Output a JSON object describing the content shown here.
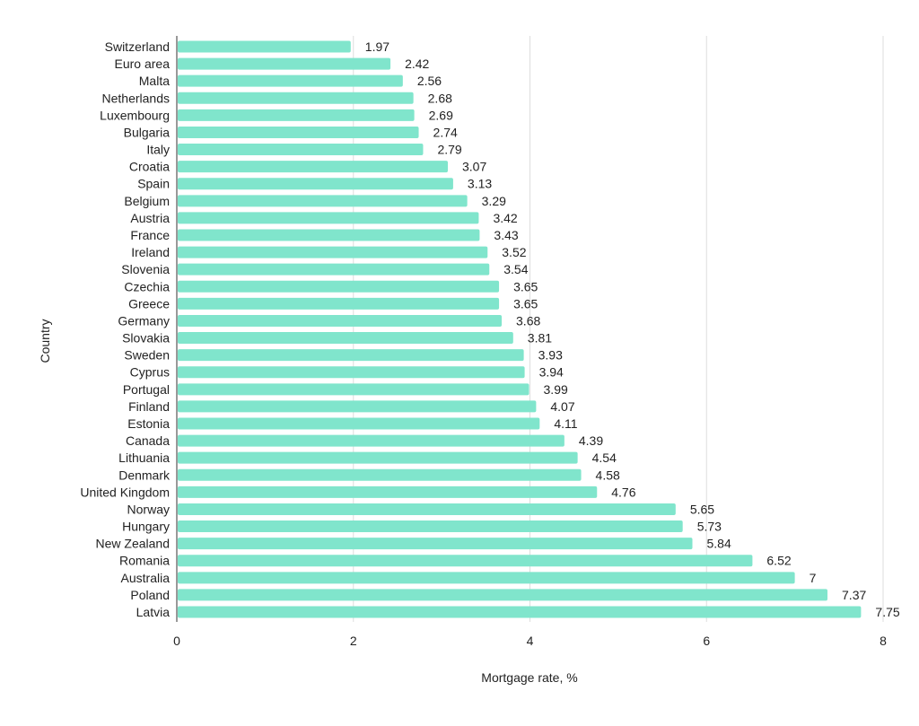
{
  "chart_data": {
    "type": "bar",
    "orientation": "horizontal",
    "title": "",
    "xlabel": "Mortgage rate, %",
    "ylabel": "Country",
    "xlim": [
      0,
      8
    ],
    "xticks": [
      0,
      2,
      4,
      6,
      8
    ],
    "grid": "vertical",
    "legend": "none",
    "bar_color": "#80E5CC",
    "data_labels": true,
    "categories": [
      "Switzerland",
      "Euro area",
      "Malta",
      "Netherlands",
      "Luxembourg",
      "Bulgaria",
      "Italy",
      "Croatia",
      "Spain",
      "Belgium",
      "Austria",
      "France",
      "Ireland",
      "Slovenia",
      "Czechia",
      "Greece",
      "Germany",
      "Slovakia",
      "Sweden",
      "Cyprus",
      "Portugal",
      "Finland",
      "Estonia",
      "Canada",
      "Lithuania",
      "Denmark",
      "United Kingdom",
      "Norway",
      "Hungary",
      "New Zealand",
      "Romania",
      "Australia",
      "Poland",
      "Latvia"
    ],
    "values": [
      1.97,
      2.42,
      2.56,
      2.68,
      2.69,
      2.74,
      2.79,
      3.07,
      3.13,
      3.29,
      3.42,
      3.43,
      3.52,
      3.54,
      3.65,
      3.65,
      3.68,
      3.81,
      3.93,
      3.94,
      3.99,
      4.07,
      4.11,
      4.39,
      4.54,
      4.58,
      4.76,
      5.65,
      5.73,
      5.84,
      6.52,
      7,
      7.37,
      7.75
    ]
  }
}
